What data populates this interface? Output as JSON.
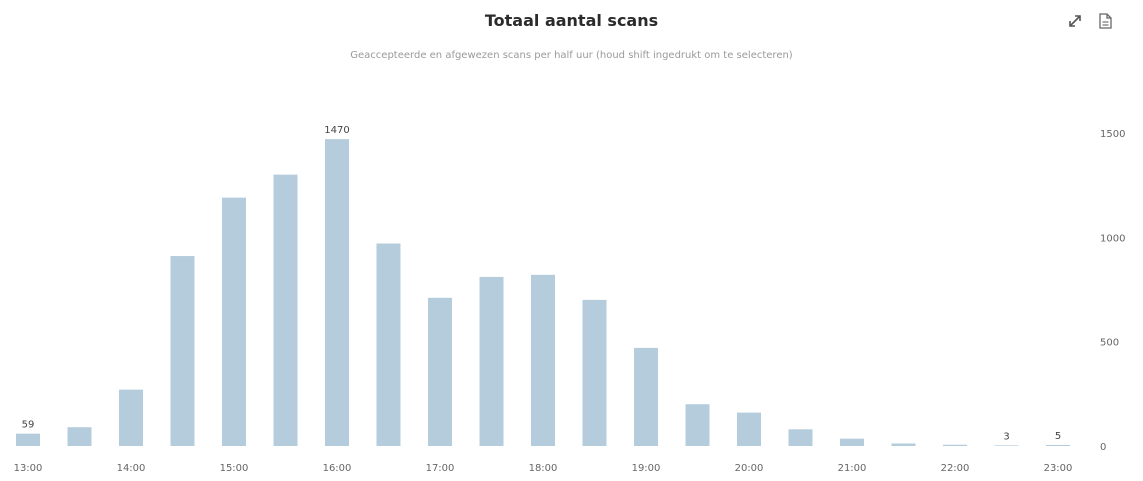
{
  "toolbar": {
    "expand_icon": "expand-icon",
    "export_icon": "document-export-icon"
  },
  "chart_data": {
    "type": "bar",
    "title": "Totaal aantal scans",
    "subtitle": "Geaccepteerde en afgewezen scans per half uur (houd shift ingedrukt om te selecteren)",
    "categories": [
      "13:00",
      "13:30",
      "14:00",
      "14:30",
      "15:00",
      "15:30",
      "16:00",
      "16:30",
      "17:00",
      "17:30",
      "18:00",
      "18:30",
      "19:00",
      "19:30",
      "20:00",
      "20:30",
      "21:00",
      "21:30",
      "22:00",
      "22:30",
      "23:00"
    ],
    "values": [
      59,
      90,
      270,
      910,
      1190,
      1300,
      1470,
      970,
      710,
      810,
      820,
      700,
      470,
      200,
      160,
      80,
      35,
      12,
      6,
      3,
      5
    ],
    "data_labels": [
      {
        "index": 0,
        "text": "59"
      },
      {
        "index": 6,
        "text": "1470"
      },
      {
        "index": 19,
        "text": "3"
      },
      {
        "index": 20,
        "text": "5"
      }
    ],
    "x_tick_labels": [
      "13:00",
      "14:00",
      "15:00",
      "16:00",
      "17:00",
      "18:00",
      "19:00",
      "20:00",
      "21:00",
      "22:00",
      "23:00"
    ],
    "y_ticks": [
      0,
      500,
      1000,
      1500
    ],
    "ylim": [
      0,
      1600
    ],
    "y_axis_side": "right",
    "bar_color": "#b4ccdc",
    "grid": false,
    "legend": "none"
  }
}
